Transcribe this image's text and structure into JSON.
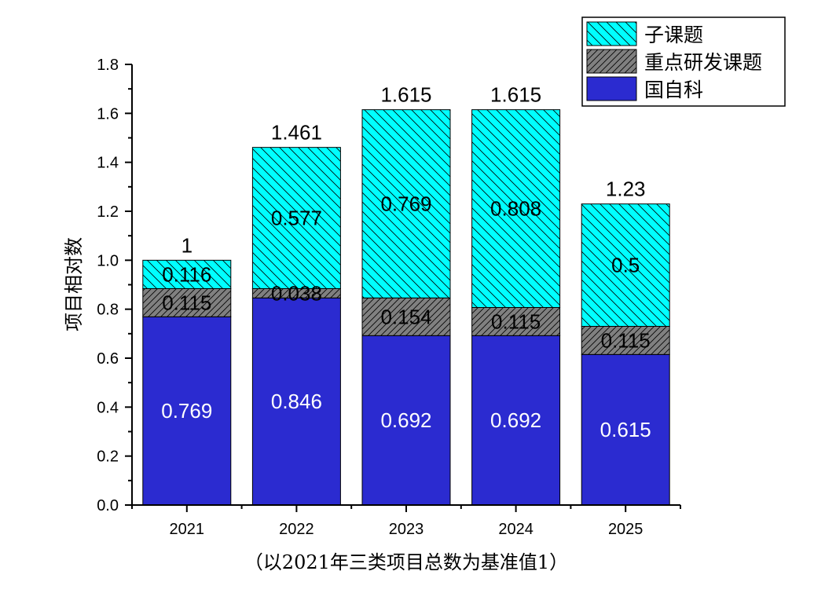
{
  "chart_data": {
    "type": "bar",
    "stacked": true,
    "title": "",
    "xlabel": "（以2021年三类项目总数为基准值1）",
    "ylabel": "项目相对数",
    "ylim": [
      0,
      1.8
    ],
    "yticks": [
      "0.0",
      "0.2",
      "0.4",
      "0.6",
      "0.8",
      "1.0",
      "1.2",
      "1.4",
      "1.6",
      "1.8"
    ],
    "categories": [
      "2021",
      "2022",
      "2023",
      "2024",
      "2025"
    ],
    "series": [
      {
        "name": "国自科",
        "values": [
          0.769,
          0.846,
          0.692,
          0.692,
          0.615
        ],
        "labels": [
          "0.769",
          "0.846",
          "0.692",
          "0.692",
          "0.615"
        ],
        "color": "#2B2BD0",
        "pattern": "solid"
      },
      {
        "name": "重点研发课题",
        "values": [
          0.115,
          0.038,
          0.154,
          0.115,
          0.115
        ],
        "labels": [
          "0.115",
          "0.038",
          "0.154",
          "0.115",
          "0.115"
        ],
        "color": "#808080",
        "pattern": "hatch-forward"
      },
      {
        "name": "子课题",
        "values": [
          0.116,
          0.577,
          0.769,
          0.808,
          0.5
        ],
        "labels": [
          "0.116",
          "0.577",
          "0.769",
          "0.808",
          "0.5"
        ],
        "color": "#00FFFF",
        "pattern": "hatch-back"
      }
    ],
    "totals": [
      "1",
      "1.461",
      "1.615",
      "1.615",
      "1.23"
    ],
    "legend": {
      "placement": "top-right",
      "order": [
        "子课题",
        "重点研发课题",
        "国自科"
      ]
    },
    "grid": false
  }
}
